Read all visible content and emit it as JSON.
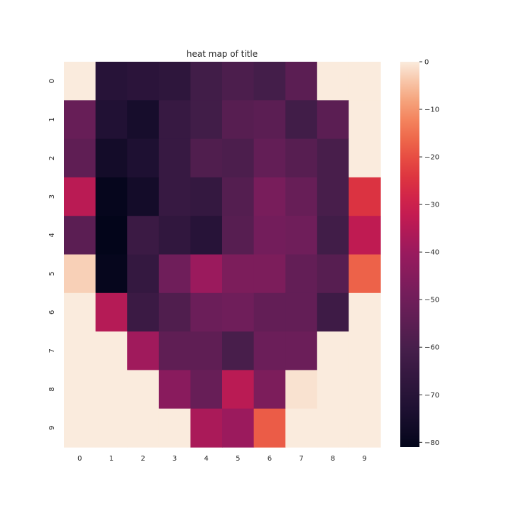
{
  "chart_data": {
    "type": "heatmap",
    "title": "heat map of title",
    "x_categories": [
      "0",
      "1",
      "2",
      "3",
      "4",
      "5",
      "6",
      "7",
      "8",
      "9"
    ],
    "y_categories": [
      "0",
      "1",
      "2",
      "3",
      "4",
      "5",
      "6",
      "7",
      "8",
      "9"
    ],
    "values": [
      [
        0,
        -70,
        -69,
        -68,
        -62,
        -59,
        -61,
        -55,
        0,
        0
      ],
      [
        -52,
        -72,
        -75,
        -65,
        -62,
        -56,
        -55,
        -62,
        -55,
        0
      ],
      [
        -54,
        -76,
        -73,
        -65,
        -58,
        -59,
        -53,
        -56,
        -60,
        0
      ],
      [
        -34,
        -80,
        -76,
        -65,
        -66,
        -57,
        -48,
        -52,
        -60,
        -25
      ],
      [
        -55,
        -81,
        -64,
        -67,
        -70,
        -56,
        -49,
        -50,
        -62,
        -33
      ],
      [
        -3,
        -80,
        -66,
        -50,
        -40,
        -47,
        -47,
        -53,
        -56,
        -17
      ],
      [
        0,
        -35,
        -64,
        -58,
        -51,
        -50,
        -53,
        -53,
        -63,
        0
      ],
      [
        0,
        0,
        -39,
        -54,
        -54,
        -60,
        -51,
        -51,
        0,
        0
      ],
      [
        0,
        0,
        0,
        -44,
        -52,
        -34,
        -47,
        -1,
        0,
        0
      ],
      [
        0,
        0,
        0,
        0,
        -37,
        -40,
        -18,
        0,
        0,
        0
      ]
    ],
    "colorbar": {
      "vmin": -81,
      "vmax": 0,
      "ticks": [
        0,
        -10,
        -20,
        -30,
        -40,
        -50,
        -60,
        -70,
        -80
      ],
      "tick_labels": [
        "0",
        "−10",
        "−20",
        "−30",
        "−40",
        "−50",
        "−60",
        "−70",
        "−80"
      ]
    },
    "colormap": "rocket",
    "grid": false
  }
}
